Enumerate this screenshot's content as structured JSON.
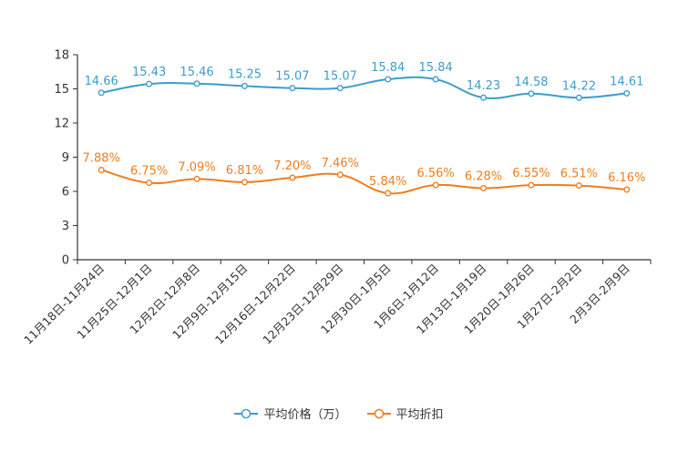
{
  "chart_data": {
    "type": "line",
    "categories": [
      "11月18日-11月24日",
      "11月25日-12月1日",
      "12月2日-12月8日",
      "12月9日-12月15日",
      "12月16日-12月22日",
      "12月23日-12月29日",
      "12月30日-1月5日",
      "1月6日-1月12日",
      "1月13日-1月19日",
      "1月20日-1月26日",
      "1月27日-2月2日",
      "2月3日-2月9日"
    ],
    "y_ticks": [
      "0",
      "3",
      "6",
      "9",
      "12",
      "15",
      "18"
    ],
    "ylim": [
      0,
      18
    ],
    "series": [
      {
        "name": "平均价格（万）",
        "color": "#3d9ccc",
        "values": [
          14.66,
          15.43,
          15.46,
          15.25,
          15.07,
          15.07,
          15.84,
          15.84,
          14.23,
          14.58,
          14.22,
          14.61
        ],
        "labels": [
          "14.66",
          "15.43",
          "15.46",
          "15.25",
          "15.07",
          "15.07",
          "15.84",
          "15.84",
          "14.23",
          "14.58",
          "14.22",
          "14.61"
        ]
      },
      {
        "name": "平均折扣",
        "color": "#f07d1d",
        "values": [
          7.88,
          6.75,
          7.09,
          6.81,
          7.2,
          7.46,
          5.84,
          6.56,
          6.28,
          6.55,
          6.51,
          6.16
        ],
        "labels": [
          "7.88%",
          "6.75%",
          "7.09%",
          "6.81%",
          "7.20%",
          "7.46%",
          "5.84%",
          "6.56%",
          "6.28%",
          "6.55%",
          "6.51%",
          "6.16%"
        ]
      }
    ],
    "legend_position": "bottom"
  }
}
